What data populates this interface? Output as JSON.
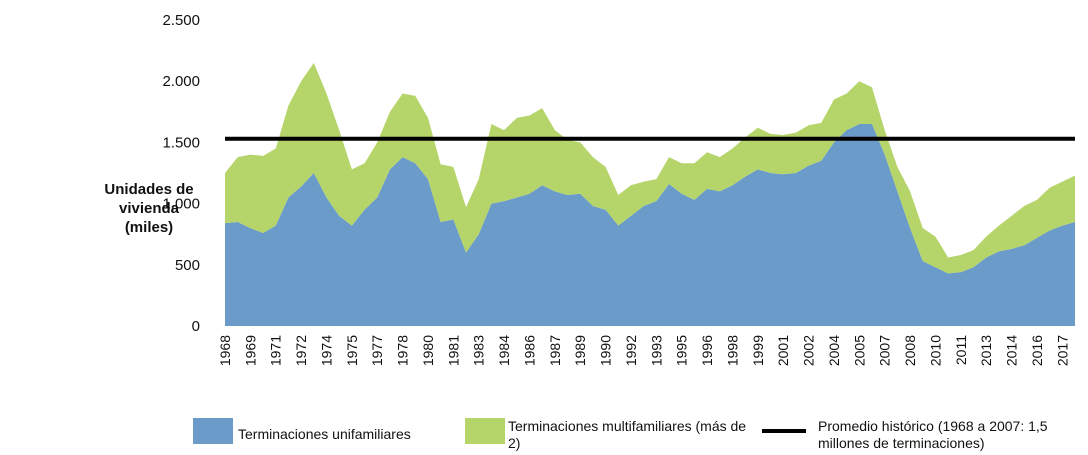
{
  "chart_data": {
    "type": "stacked_area",
    "y_label": "Unidades de vivienda (miles)",
    "categories": [
      "1968",
      null,
      "1969",
      null,
      "1971",
      null,
      "1972",
      null,
      "1974",
      null,
      "1975",
      null,
      "1977",
      null,
      "1978",
      null,
      "1980",
      null,
      "1981",
      null,
      "1983",
      null,
      "1984",
      null,
      "1986",
      null,
      "1987",
      null,
      "1989",
      null,
      "1990",
      null,
      "1992",
      null,
      "1993",
      null,
      "1995",
      null,
      "1996",
      null,
      "1998",
      null,
      "1999",
      null,
      "2001",
      null,
      "2002",
      null,
      "2004",
      null,
      "2005",
      null,
      "2007",
      null,
      "2008",
      null,
      "2010",
      null,
      "2011",
      null,
      "2013",
      null,
      "2014",
      null,
      "2016",
      null,
      "2017",
      null
    ],
    "series": [
      {
        "name": "Terminaciones unifamiliares",
        "color": "#6b9bc8",
        "values": [
          840,
          850,
          800,
          760,
          820,
          1050,
          1140,
          1250,
          1050,
          900,
          820,
          950,
          1050,
          1280,
          1380,
          1330,
          1200,
          850,
          870,
          600,
          750,
          1000,
          1020,
          1050,
          1080,
          1150,
          1100,
          1070,
          1080,
          980,
          950,
          820,
          900,
          980,
          1020,
          1160,
          1080,
          1030,
          1120,
          1100,
          1150,
          1220,
          1280,
          1250,
          1240,
          1250,
          1310,
          1350,
          1500,
          1600,
          1650,
          1650,
          1400,
          1100,
          800,
          530,
          480,
          430,
          440,
          480,
          560,
          610,
          630,
          660,
          720,
          780,
          820,
          850
        ]
      },
      {
        "name": "Terminaciones multifamiliares (más de 2)",
        "color": "#b5d56a",
        "values": [
          410,
          530,
          600,
          630,
          630,
          750,
          860,
          900,
          850,
          700,
          460,
          380,
          450,
          470,
          520,
          550,
          500,
          470,
          430,
          370,
          450,
          650,
          580,
          650,
          640,
          630,
          500,
          450,
          420,
          400,
          350,
          250,
          250,
          200,
          180,
          220,
          250,
          300,
          300,
          280,
          300,
          320,
          340,
          320,
          320,
          330,
          330,
          310,
          350,
          300,
          350,
          300,
          200,
          200,
          300,
          270,
          250,
          130,
          140,
          140,
          170,
          210,
          270,
          320,
          310,
          350,
          360,
          380
        ]
      }
    ],
    "reference_line": {
      "name": "Promedio histórico (1968 a 2007: 1,5 millones de terminaciones)",
      "value": 1530,
      "color": "#000000"
    },
    "ylim": [
      0,
      2500
    ],
    "yticks": [
      0,
      500,
      {
        "value": 1000,
        "label": "1.000"
      },
      {
        "value": 1500,
        "label": "1.500"
      },
      {
        "value": 2000,
        "label": "2.000"
      },
      {
        "value": 2500,
        "label": "2.500"
      }
    ]
  }
}
